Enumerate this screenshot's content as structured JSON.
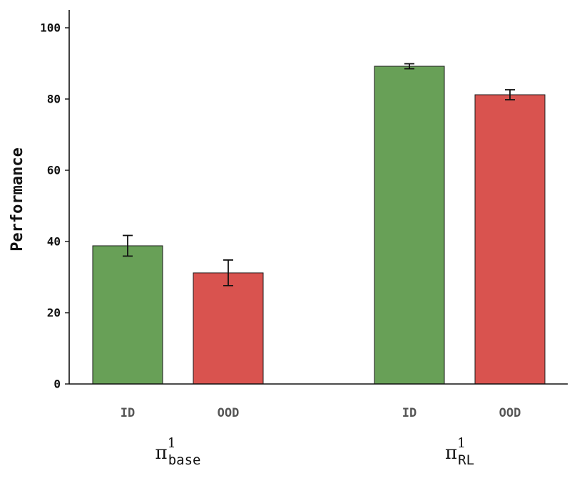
{
  "chart_data": {
    "type": "bar",
    "ylabel": "Performance",
    "ylim": [
      0,
      105
    ],
    "yticks": [
      0,
      20,
      40,
      60,
      80,
      100
    ],
    "grid": false,
    "legend": "none",
    "groups": [
      {
        "label_base": "π",
        "label_sup": "1",
        "label_sub": "base",
        "bars": [
          {
            "category": "ID",
            "value": 38.8,
            "error": 2.9,
            "color": "#68a057"
          },
          {
            "category": "OOD",
            "value": 31.2,
            "error": 3.6,
            "color": "#d9534f"
          }
        ]
      },
      {
        "label_base": "π",
        "label_sup": "1",
        "label_sub": "RL",
        "bars": [
          {
            "category": "ID",
            "value": 89.2,
            "error": 0.7,
            "color": "#68a057"
          },
          {
            "category": "OOD",
            "value": 81.2,
            "error": 1.4,
            "color": "#d9534f"
          }
        ]
      }
    ]
  }
}
